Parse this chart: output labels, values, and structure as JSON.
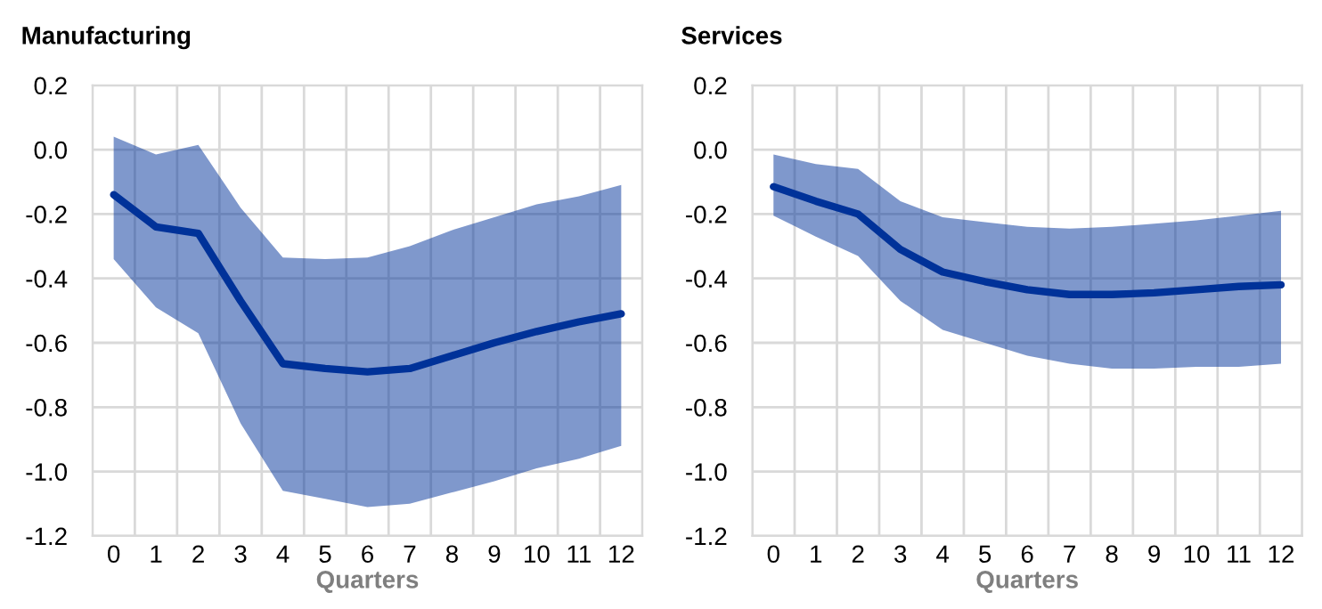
{
  "chart_data": [
    {
      "type": "line",
      "title": "Manufacturing",
      "xlabel": "Quarters",
      "categories": [
        "0",
        "1",
        "2",
        "3",
        "4",
        "5",
        "6",
        "7",
        "8",
        "9",
        "10",
        "11",
        "12"
      ],
      "ylim": [
        -1.2,
        0.2
      ],
      "yticks": [
        {
          "value": -1.2,
          "label": "-1.2"
        },
        {
          "value": -1.0,
          "label": "-1.0"
        },
        {
          "value": -0.8,
          "label": "-0.8"
        },
        {
          "value": -0.6,
          "label": "-0.6"
        },
        {
          "value": -0.4,
          "label": "-0.4"
        },
        {
          "value": -0.2,
          "label": "-0.2"
        },
        {
          "value": 0.0,
          "label": "0.0"
        },
        {
          "value": 0.2,
          "label": "0.2"
        }
      ],
      "grid": true,
      "series": [
        {
          "color": "#003299",
          "values": [
            -0.14,
            -0.24,
            -0.26,
            -0.47,
            -0.665,
            -0.68,
            -0.69,
            -0.68,
            -0.64,
            -0.6,
            -0.565,
            -0.535,
            -0.51
          ],
          "upper": [
            0.04,
            -0.015,
            0.015,
            -0.18,
            -0.335,
            -0.34,
            -0.335,
            -0.3,
            -0.25,
            -0.21,
            -0.17,
            -0.145,
            -0.11
          ],
          "lower": [
            -0.34,
            -0.49,
            -0.57,
            -0.85,
            -1.06,
            -1.085,
            -1.11,
            -1.1,
            -1.065,
            -1.03,
            -0.99,
            -0.96,
            -0.92
          ]
        }
      ]
    },
    {
      "type": "line",
      "title": "Services",
      "xlabel": "Quarters",
      "categories": [
        "0",
        "1",
        "2",
        "3",
        "4",
        "5",
        "6",
        "7",
        "8",
        "9",
        "10",
        "11",
        "12"
      ],
      "ylim": [
        -1.2,
        0.2
      ],
      "yticks": [
        {
          "value": -1.2,
          "label": "-1.2"
        },
        {
          "value": -1.0,
          "label": "-1.0"
        },
        {
          "value": -0.8,
          "label": "-0.8"
        },
        {
          "value": -0.6,
          "label": "-0.6"
        },
        {
          "value": -0.4,
          "label": "-0.4"
        },
        {
          "value": -0.2,
          "label": "-0.2"
        },
        {
          "value": 0.0,
          "label": "0.0"
        },
        {
          "value": 0.2,
          "label": "0.2"
        }
      ],
      "grid": true,
      "series": [
        {
          "color": "#003299",
          "values": [
            -0.115,
            -0.16,
            -0.2,
            -0.31,
            -0.38,
            -0.41,
            -0.435,
            -0.45,
            -0.45,
            -0.445,
            -0.435,
            -0.425,
            -0.42
          ],
          "upper": [
            -0.015,
            -0.045,
            -0.06,
            -0.16,
            -0.21,
            -0.225,
            -0.24,
            -0.245,
            -0.24,
            -0.23,
            -0.22,
            -0.205,
            -0.19
          ],
          "lower": [
            -0.205,
            -0.27,
            -0.33,
            -0.47,
            -0.56,
            -0.6,
            -0.64,
            -0.665,
            -0.68,
            -0.68,
            -0.675,
            -0.675,
            -0.665
          ]
        }
      ]
    }
  ]
}
